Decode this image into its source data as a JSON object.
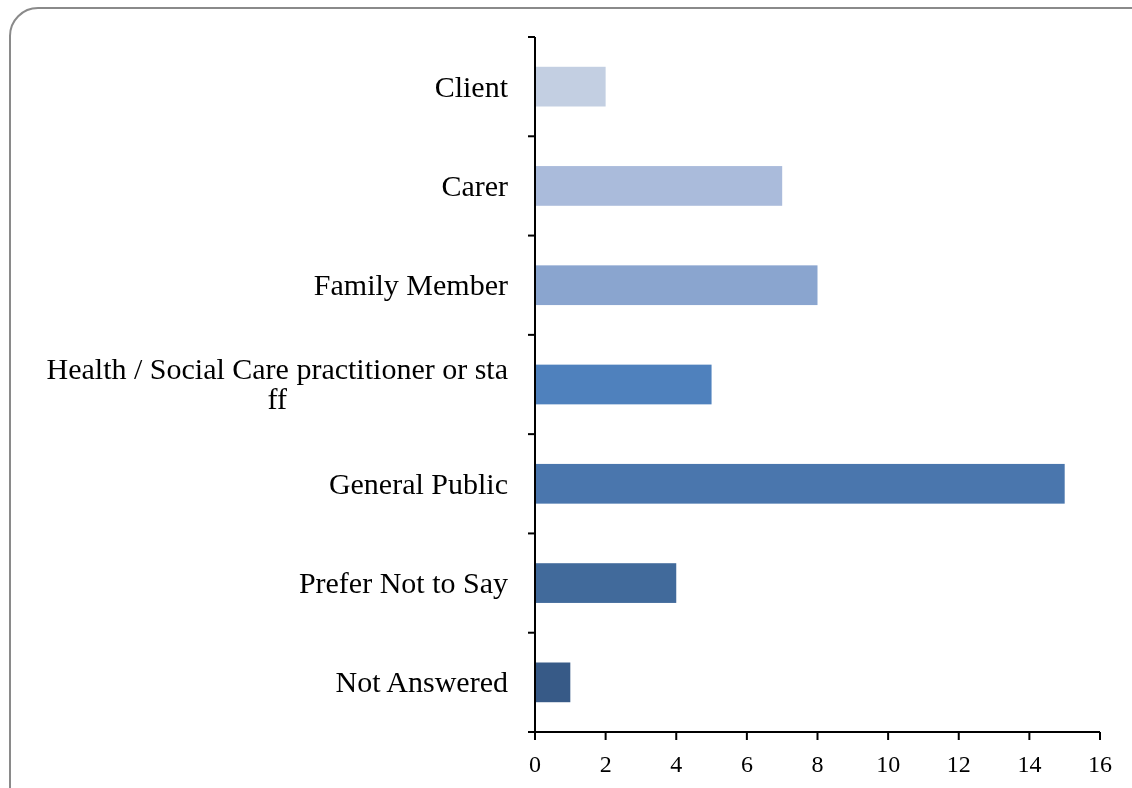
{
  "chart_data": {
    "type": "bar",
    "orientation": "horizontal",
    "categories": [
      "Client",
      "Carer",
      "Family Member",
      "Health / Social Care practitioner or staff",
      "General Public",
      "Prefer Not to Say",
      "Not Answered"
    ],
    "values": [
      2,
      7,
      8,
      5,
      15,
      4,
      1
    ],
    "colors": [
      "#c3cfe2",
      "#aabbdb",
      "#8aa5cf",
      "#4f81bd",
      "#4a76ad",
      "#416a9b",
      "#375a87"
    ],
    "xlim": [
      0,
      16
    ],
    "xticks": [
      0,
      2,
      4,
      6,
      8,
      10,
      12,
      14,
      16
    ]
  }
}
